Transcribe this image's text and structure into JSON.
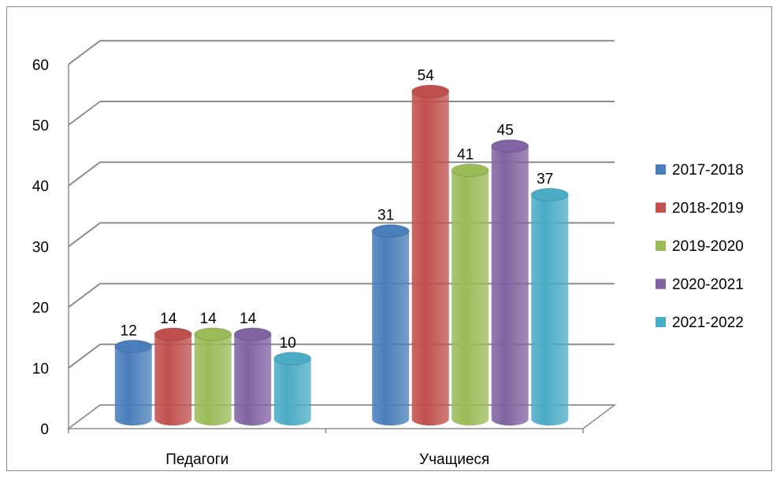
{
  "chart_data": {
    "type": "bar",
    "categories": [
      "Педагоги",
      "Учащиеся"
    ],
    "series": [
      {
        "name": "2017-2018",
        "values": [
          12,
          31
        ],
        "color": "#4a7ebb"
      },
      {
        "name": "2018-2019",
        "values": [
          14,
          54
        ],
        "color": "#c0504d"
      },
      {
        "name": "2019-2020",
        "values": [
          14,
          41
        ],
        "color": "#9bbb59"
      },
      {
        "name": "2020-2021",
        "values": [
          14,
          45
        ],
        "color": "#8064a2"
      },
      {
        "name": "2021-2022",
        "values": [
          10,
          37
        ],
        "color": "#4bacc6"
      }
    ],
    "ylim": [
      0,
      60
    ],
    "yticks": [
      0,
      10,
      20,
      30,
      40,
      50,
      60
    ],
    "grid": true,
    "legend_position": "right",
    "data_labels": true
  }
}
